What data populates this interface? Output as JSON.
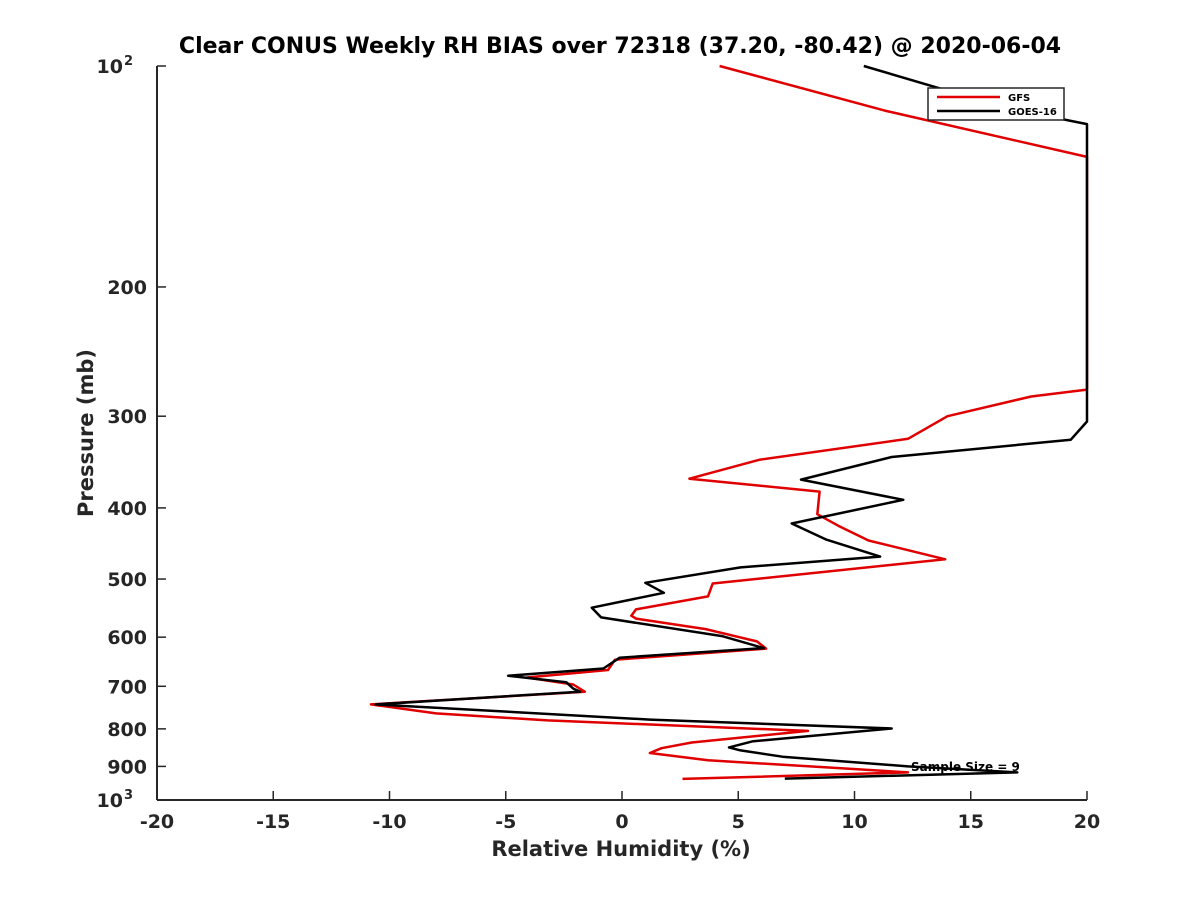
{
  "chart_data": {
    "type": "line",
    "title": "Clear CONUS Weekly RH BIAS over 72318 (37.20, -80.42) @ 2020-06-04",
    "xlabel": "Relative Humidity (%)",
    "ylabel": "Pressure (mb)",
    "xlim": [
      -20,
      20
    ],
    "ylim": [
      100,
      1000
    ],
    "y_scale": "log",
    "y_reversed": true,
    "x_ticks": [
      "-20",
      "-15",
      "-10",
      "-5",
      "0",
      "5",
      "10",
      "15",
      "20"
    ],
    "x_tick_values": [
      -20,
      -15,
      -10,
      -5,
      0,
      5,
      10,
      15,
      20
    ],
    "y_ticks": [
      {
        "value": 100,
        "base": "10",
        "exp": "2"
      },
      {
        "value": 200,
        "base": "200",
        "exp": ""
      },
      {
        "value": 300,
        "base": "300",
        "exp": ""
      },
      {
        "value": 400,
        "base": "400",
        "exp": ""
      },
      {
        "value": 500,
        "base": "500",
        "exp": ""
      },
      {
        "value": 600,
        "base": "600",
        "exp": ""
      },
      {
        "value": 700,
        "base": "700",
        "exp": ""
      },
      {
        "value": 800,
        "base": "800",
        "exp": ""
      },
      {
        "value": 900,
        "base": "900",
        "exp": ""
      },
      {
        "value": 1000,
        "base": "10",
        "exp": "3"
      }
    ],
    "grid": false,
    "legend_position": "top-right",
    "annotation": "Sample Size = 9",
    "series": [
      {
        "name": "GFS",
        "color": "#e00000",
        "points": [
          [
            4.2,
            100
          ],
          [
            11.3,
            115
          ],
          [
            20,
            133
          ],
          [
            20,
            276
          ],
          [
            17.6,
            282
          ],
          [
            14,
            300
          ],
          [
            12.3,
            322
          ],
          [
            5.9,
            344
          ],
          [
            2.9,
            365
          ],
          [
            8.5,
            380
          ],
          [
            8.4,
            408
          ],
          [
            9.3,
            423
          ],
          [
            10.6,
            443
          ],
          [
            13.9,
            470
          ],
          [
            3.9,
            507
          ],
          [
            3.7,
            528
          ],
          [
            0.6,
            550
          ],
          [
            0.4,
            561
          ],
          [
            0.6,
            566
          ],
          [
            3.6,
            585
          ],
          [
            5.8,
            608
          ],
          [
            6.2,
            622
          ],
          [
            -0.3,
            644
          ],
          [
            -0.6,
            665
          ],
          [
            -4.1,
            681
          ],
          [
            -2.1,
            696
          ],
          [
            -1.6,
            712
          ],
          [
            -10.8,
            741
          ],
          [
            -8,
            762
          ],
          [
            -3.2,
            779
          ],
          [
            8,
            805
          ],
          [
            3,
            835
          ],
          [
            1.7,
            850
          ],
          [
            1.2,
            863
          ],
          [
            3.7,
            883
          ],
          [
            8.9,
            903
          ],
          [
            12.3,
            917
          ],
          [
            2.6,
            936
          ]
        ]
      },
      {
        "name": "GOES-16",
        "color": "#000000",
        "points": [
          [
            10.4,
            100
          ],
          [
            16.5,
            114
          ],
          [
            20,
            120
          ],
          [
            20,
            305
          ],
          [
            19.3,
            323
          ],
          [
            11.6,
            341
          ],
          [
            7.7,
            366
          ],
          [
            12.1,
            390
          ],
          [
            7.3,
            420
          ],
          [
            8.8,
            442
          ],
          [
            11.1,
            466
          ],
          [
            5.1,
            482
          ],
          [
            1.0,
            506
          ],
          [
            1.8,
            522
          ],
          [
            -1.3,
            547
          ],
          [
            -0.9,
            564
          ],
          [
            4.3,
            598
          ],
          [
            6.1,
            621
          ],
          [
            -0.1,
            640
          ],
          [
            -0.8,
            662
          ],
          [
            -4.9,
            677
          ],
          [
            -2.4,
            691
          ],
          [
            -2.1,
            705
          ],
          [
            -1.8,
            712
          ],
          [
            -10.6,
            741
          ],
          [
            1.2,
            777
          ],
          [
            11.6,
            799
          ],
          [
            5.6,
            832
          ],
          [
            4.6,
            848
          ],
          [
            5.1,
            856
          ],
          [
            6.9,
            873
          ],
          [
            12.3,
            900
          ],
          [
            17,
            917
          ],
          [
            7.0,
            935
          ]
        ]
      }
    ]
  }
}
